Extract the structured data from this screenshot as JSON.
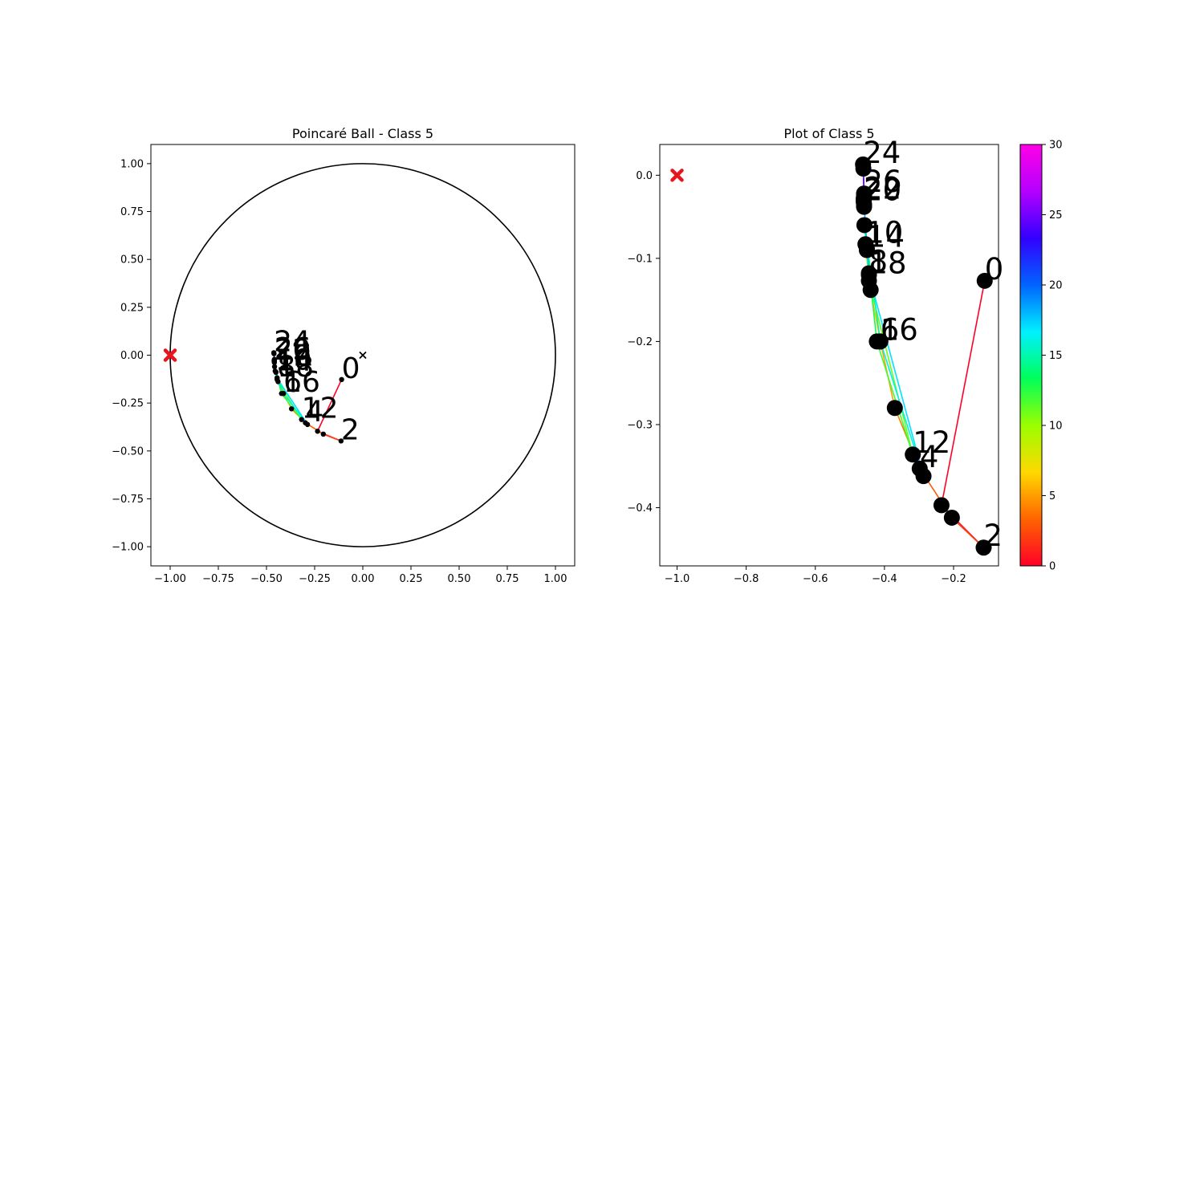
{
  "chart_data": [
    {
      "type": "line",
      "title": "Poincaré Ball - Class 5",
      "xlabel": "",
      "ylabel": "",
      "xlim": [
        -1.1,
        1.1
      ],
      "ylim": [
        -1.1,
        1.1
      ],
      "xticks": [
        "−1.00",
        "−0.75",
        "−0.50",
        "−0.25",
        "0.00",
        "0.25",
        "0.50",
        "0.75",
        "1.00"
      ],
      "yticks": [
        "−1.00",
        "−0.75",
        "−0.50",
        "−0.25",
        "0.00",
        "0.25",
        "0.50",
        "0.75",
        "1.00"
      ],
      "unit_circle": true,
      "origin_marker": "x",
      "target_marker": {
        "x": -1.0,
        "y": 0.0,
        "color": "#e8141e",
        "shape": "X"
      }
    },
    {
      "type": "line",
      "title": "Plot of Class 5",
      "xlabel": "",
      "ylabel": "",
      "xlim": [
        -1.05,
        -0.07
      ],
      "ylim": [
        -0.47,
        0.037
      ],
      "xticks": [
        "−1.0",
        "−0.8",
        "−0.6",
        "−0.4",
        "−0.2"
      ],
      "yticks": [
        "0.0",
        "−0.1",
        "−0.2",
        "−0.3",
        "−0.4"
      ],
      "target_marker": {
        "x": -1.0,
        "y": 0.0,
        "color": "#e8141e",
        "shape": "X"
      }
    }
  ],
  "trajectory": [
    {
      "step": 0,
      "x": -0.11,
      "y": -0.127
    },
    {
      "step": 1,
      "x": -0.235,
      "y": -0.397
    },
    {
      "step": 2,
      "x": -0.113,
      "y": -0.448
    },
    {
      "step": 3,
      "x": -0.205,
      "y": -0.412
    },
    {
      "step": 4,
      "x": -0.298,
      "y": -0.353
    },
    {
      "step": 5,
      "x": -0.37,
      "y": -0.28
    },
    {
      "step": 6,
      "x": -0.412,
      "y": -0.2
    },
    {
      "step": 7,
      "x": -0.44,
      "y": -0.138
    },
    {
      "step": 8,
      "x": -0.445,
      "y": -0.118
    },
    {
      "step": 9,
      "x": -0.451,
      "y": -0.09
    },
    {
      "step": 10,
      "x": -0.455,
      "y": -0.083
    },
    {
      "step": 11,
      "x": -0.445,
      "y": -0.127
    },
    {
      "step": 12,
      "x": -0.318,
      "y": -0.336
    },
    {
      "step": 13,
      "x": -0.422,
      "y": -0.2
    },
    {
      "step": 14,
      "x": -0.451,
      "y": -0.088
    },
    {
      "step": 15,
      "x": -0.458,
      "y": -0.06
    },
    {
      "step": 16,
      "x": -0.412,
      "y": -0.2
    },
    {
      "step": 17,
      "x": -0.287,
      "y": -0.362
    },
    {
      "step": 18,
      "x": -0.445,
      "y": -0.12
    },
    {
      "step": 19,
      "x": -0.459,
      "y": -0.035
    },
    {
      "step": 20,
      "x": -0.46,
      "y": -0.032
    },
    {
      "step": 21,
      "x": -0.459,
      "y": -0.038
    },
    {
      "step": 22,
      "x": -0.46,
      "y": -0.03
    },
    {
      "step": 23,
      "x": -0.459,
      "y": -0.025
    },
    {
      "step": 24,
      "x": -0.462,
      "y": 0.013
    },
    {
      "step": 25,
      "x": -0.461,
      "y": 0.008
    },
    {
      "step": 26,
      "x": -0.459,
      "y": -0.022
    },
    {
      "step": 27,
      "x": -0.46,
      "y": -0.028
    }
  ],
  "point_labels": [
    {
      "text": "0",
      "step": 0
    },
    {
      "text": "2",
      "step": 2
    },
    {
      "text": "4",
      "step": 4
    },
    {
      "text": "6",
      "step": 6
    },
    {
      "text": "8",
      "step": 8
    },
    {
      "text": "10",
      "step": 10
    },
    {
      "text": "12",
      "step": 12
    },
    {
      "text": "14",
      "step": 14
    },
    {
      "text": "16",
      "step": 16
    },
    {
      "text": "18",
      "step": 18
    },
    {
      "text": "20",
      "step": 20
    },
    {
      "text": "22",
      "step": 22
    },
    {
      "text": "24",
      "step": 24
    },
    {
      "text": "26",
      "step": 26
    }
  ],
  "colorbar": {
    "min": 0,
    "max": 30,
    "ticks": [
      "0",
      "5",
      "10",
      "15",
      "20",
      "25",
      "30"
    ],
    "colormap": [
      "#ff0028",
      "#ff6400",
      "#ffd800",
      "#9bff00",
      "#00ff5a",
      "#00f0ff",
      "#0064ff",
      "#3200ff",
      "#b400ff",
      "#ff00e6"
    ]
  }
}
